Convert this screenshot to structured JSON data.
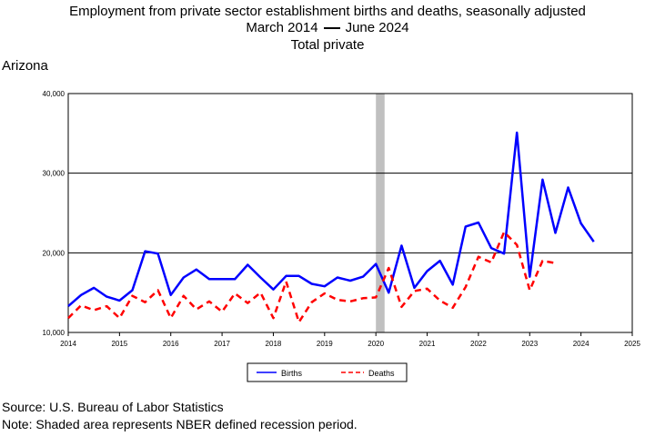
{
  "header": {
    "title": "Employment from private sector establishment births and deaths, seasonally adjusted",
    "period_start": "March 2014",
    "period_end": "June 2024",
    "series_group": "Total private",
    "region": "Arizona"
  },
  "footer": {
    "source": "Source: U.S. Bureau of Labor Statistics",
    "note": "Note: Shaded area represents NBER defined recession period."
  },
  "chart_data": {
    "type": "line",
    "x_ticks": [
      "2014",
      "2015",
      "2016",
      "2017",
      "2018",
      "2019",
      "2020",
      "2021",
      "2022",
      "2023",
      "2024",
      "2025"
    ],
    "y_ticks": [
      "10,000",
      "20,000",
      "30,000",
      "40,000"
    ],
    "ylim": [
      10000,
      40000
    ],
    "xlim": [
      2014,
      2025
    ],
    "grid": "horizontal",
    "recession": {
      "start": 2020.0,
      "end": 2020.17
    },
    "legend_position": "bottom-center",
    "colors": {
      "births": "#0000ff",
      "deaths": "#ff0000",
      "recession": "#c0c0c0"
    },
    "series": [
      {
        "name": "Births",
        "style": "solid",
        "x": [
          2014.0,
          2014.25,
          2014.5,
          2014.75,
          2015.0,
          2015.25,
          2015.5,
          2015.75,
          2016.0,
          2016.25,
          2016.5,
          2016.75,
          2017.0,
          2017.25,
          2017.5,
          2017.75,
          2018.0,
          2018.25,
          2018.5,
          2018.75,
          2019.0,
          2019.25,
          2019.5,
          2019.75,
          2020.0,
          2020.25,
          2020.5,
          2020.75,
          2021.0,
          2021.25,
          2021.5,
          2021.75,
          2022.0,
          2022.25,
          2022.5,
          2022.75,
          2023.0,
          2023.25,
          2023.5,
          2023.75,
          2024.0,
          2024.25
        ],
        "y": [
          13300,
          14700,
          15600,
          14500,
          14000,
          15300,
          20200,
          19900,
          14700,
          16900,
          17900,
          16700,
          16700,
          16700,
          18500,
          16900,
          15400,
          17100,
          17100,
          16100,
          15800,
          16900,
          16500,
          17000,
          18600,
          15000,
          20900,
          15600,
          17700,
          19000,
          16000,
          23300,
          23800,
          20600,
          19900,
          35100,
          17000,
          29200,
          22500,
          28200,
          23700,
          21400
        ]
      },
      {
        "name": "Deaths",
        "style": "dashed",
        "x": [
          2014.0,
          2014.25,
          2014.5,
          2014.75,
          2015.0,
          2015.25,
          2015.5,
          2015.75,
          2016.0,
          2016.25,
          2016.5,
          2016.75,
          2017.0,
          2017.25,
          2017.5,
          2017.75,
          2018.0,
          2018.25,
          2018.5,
          2018.75,
          2019.0,
          2019.25,
          2019.5,
          2019.75,
          2020.0,
          2020.25,
          2020.5,
          2020.75,
          2021.0,
          2021.25,
          2021.5,
          2021.75,
          2022.0,
          2022.25,
          2022.5,
          2022.75,
          2023.0,
          2023.25,
          2023.5
        ],
        "y": [
          11800,
          13400,
          12800,
          13300,
          11800,
          14600,
          13800,
          15300,
          11800,
          14600,
          12900,
          13900,
          12600,
          14900,
          13700,
          15000,
          11800,
          16400,
          11300,
          13800,
          14900,
          14100,
          13900,
          14300,
          14400,
          18100,
          13200,
          15200,
          15500,
          14000,
          13100,
          15700,
          19500,
          18800,
          22600,
          21000,
          15300,
          19000,
          18700
        ]
      }
    ]
  }
}
